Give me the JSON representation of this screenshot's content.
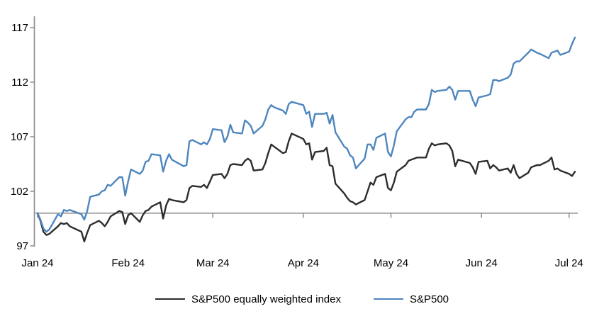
{
  "chart_data": {
    "type": "line",
    "title": "",
    "grid": false,
    "legend_position": "bottom",
    "y_axis": {
      "ticks": [
        97,
        102,
        107,
        112,
        117
      ],
      "range": [
        97,
        118
      ],
      "baseline_value": 100
    },
    "x_axis": {
      "labels": [
        "Jan 24",
        "Feb 24",
        "Mar 24",
        "Apr 24",
        "May 24",
        "Jun 24",
        "Jul 24"
      ],
      "month_start_day_of_year": [
        0,
        31,
        60,
        91,
        121,
        152,
        182
      ],
      "span_days": 184
    },
    "dates": [
      "1-1",
      "1-2",
      "1-3",
      "1-4",
      "1-5",
      "1-8",
      "1-9",
      "1-10",
      "1-11",
      "1-12",
      "1-16",
      "1-17",
      "1-18",
      "1-19",
      "1-22",
      "1-23",
      "1-24",
      "1-25",
      "1-26",
      "1-29",
      "1-30",
      "1-31",
      "2-1",
      "2-2",
      "2-5",
      "2-6",
      "2-7",
      "2-8",
      "2-9",
      "2-12",
      "2-13",
      "2-14",
      "2-15",
      "2-16",
      "2-20",
      "2-21",
      "2-22",
      "2-23",
      "2-26",
      "2-27",
      "2-28",
      "2-29",
      "3-1",
      "3-4",
      "3-5",
      "3-6",
      "3-7",
      "3-8",
      "3-11",
      "3-12",
      "3-13",
      "3-14",
      "3-15",
      "3-18",
      "3-19",
      "3-20",
      "3-21",
      "3-22",
      "3-25",
      "3-26",
      "3-27",
      "3-28",
      "4-1",
      "4-2",
      "4-3",
      "4-4",
      "4-5",
      "4-8",
      "4-9",
      "4-10",
      "4-11",
      "4-12",
      "4-15",
      "4-16",
      "4-17",
      "4-18",
      "4-19",
      "4-22",
      "4-23",
      "4-24",
      "4-25",
      "4-26",
      "4-29",
      "4-30",
      "5-1",
      "5-2",
      "5-3",
      "5-6",
      "5-7",
      "5-8",
      "5-9",
      "5-10",
      "5-13",
      "5-14",
      "5-15",
      "5-16",
      "5-17",
      "5-20",
      "5-21",
      "5-22",
      "5-23",
      "5-24",
      "5-28",
      "5-29",
      "5-30",
      "5-31",
      "6-3",
      "6-4",
      "6-5",
      "6-6",
      "6-7",
      "6-10",
      "6-11",
      "6-12",
      "6-13",
      "6-14",
      "6-17",
      "6-18",
      "6-20",
      "6-21",
      "6-24",
      "6-25",
      "6-26",
      "6-27",
      "6-28",
      "7-1",
      "7-2",
      "7-3"
    ],
    "series": [
      {
        "name": "S&P500 equally weighted index",
        "color": "#2d2d2d",
        "values": [
          100,
          99.3,
          98.3,
          98,
          98.1,
          98.8,
          99.1,
          99,
          99.1,
          98.8,
          98.3,
          97.4,
          98.2,
          98.9,
          99.3,
          99.1,
          98.8,
          99.2,
          99.7,
          100.2,
          100.1,
          99,
          99.8,
          100,
          99.2,
          99.8,
          100.2,
          100.3,
          100.6,
          101,
          99.5,
          100.7,
          101.3,
          101.2,
          101,
          101.2,
          102.3,
          102.5,
          102.4,
          102.6,
          102.3,
          102.9,
          103.5,
          103.6,
          103.2,
          103.6,
          104.4,
          104.5,
          104.4,
          104.8,
          105,
          104.8,
          103.9,
          104,
          104.6,
          105.5,
          106.3,
          106.1,
          105.5,
          105.6,
          106.6,
          107.3,
          106.8,
          106.3,
          106.4,
          104.9,
          105.6,
          105.7,
          106,
          104.4,
          104.3,
          102.7,
          101.8,
          101.4,
          101.1,
          101,
          100.8,
          101.2,
          102,
          102.8,
          102.6,
          103.3,
          103.6,
          102.3,
          102.1,
          102.8,
          103.8,
          104.4,
          104.8,
          104.9,
          105,
          105.1,
          105.1,
          105.9,
          106.4,
          106.2,
          106.3,
          106.4,
          106.2,
          105.7,
          104.3,
          104.9,
          104.6,
          104.2,
          103.6,
          104.7,
          104.8,
          104.1,
          104.4,
          104.2,
          103.9,
          104.1,
          103.7,
          104.4,
          103.6,
          103.2,
          103.7,
          104.2,
          104.4,
          104.4,
          104.8,
          105.1,
          104,
          104.1,
          103.9,
          103.6,
          103.4,
          103.8
        ]
      },
      {
        "name": "S&P500",
        "color": "#4e86be",
        "values": [
          100,
          99.4,
          98.6,
          98.3,
          98.5,
          99.9,
          99.7,
          100.3,
          100.2,
          100.3,
          99.9,
          99.4,
          100.2,
          101.5,
          101.7,
          102,
          102.1,
          102.6,
          102.5,
          103.3,
          103.3,
          101.6,
          102.9,
          104,
          103.6,
          103.9,
          104.7,
          104.8,
          105.4,
          105.3,
          103.8,
          104.8,
          105.4,
          104.9,
          104.3,
          104.4,
          106.6,
          106.7,
          106.3,
          106.5,
          106.3,
          106.8,
          107.7,
          107.6,
          106.5,
          107,
          108.1,
          107.4,
          107.3,
          108.5,
          108.3,
          108,
          107.3,
          108,
          108.6,
          109.5,
          109.9,
          109.7,
          109.4,
          109.1,
          110,
          110.2,
          109.9,
          109.1,
          109.3,
          107.9,
          109.1,
          109.1,
          109.2,
          108.2,
          109,
          107.4,
          106.1,
          105.9,
          105.3,
          105.1,
          104.1,
          105,
          106.3,
          106.3,
          105.8,
          106.9,
          107.3,
          105.6,
          105.2,
          106.2,
          107.5,
          108.6,
          108.8,
          108.8,
          109.3,
          109.5,
          109.5,
          110,
          111.3,
          111.1,
          111.2,
          111.3,
          111.6,
          111.3,
          110.4,
          111.2,
          111.2,
          110.4,
          109.8,
          110.6,
          110.8,
          110.9,
          112.2,
          112.2,
          112.1,
          112.4,
          112.7,
          113.7,
          113.9,
          113.9,
          114.7,
          115,
          114.7,
          114.6,
          114.2,
          114.7,
          114.8,
          114.9,
          114.5,
          114.8,
          115.5,
          116.1
        ]
      }
    ],
    "colors": {
      "axis": "#8c8c8c",
      "baseline": "#a3a3a3",
      "tick": "#8c8c8c"
    }
  },
  "legend": {
    "series1": "S&P500 equally weighted index",
    "series2": "S&P500"
  }
}
